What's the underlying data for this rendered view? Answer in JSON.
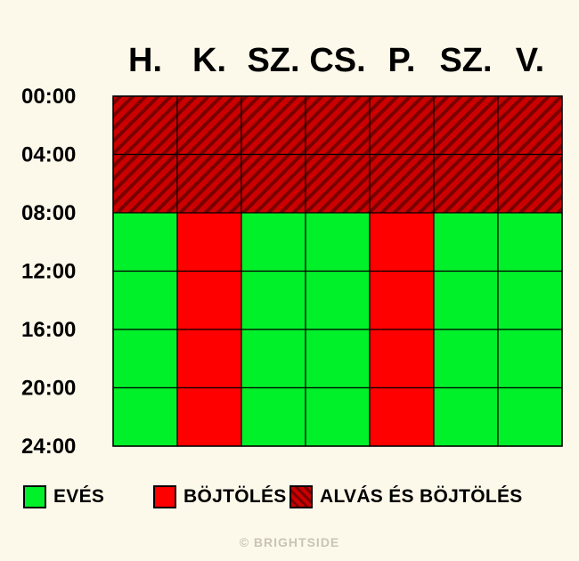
{
  "chart_data": {
    "type": "heatmap",
    "days": [
      "H.",
      "K.",
      "SZ.",
      "CS.",
      "P.",
      "SZ.",
      "V."
    ],
    "time_labels": [
      "00:00",
      "04:00",
      "08:00",
      "12:00",
      "16:00",
      "20:00",
      "24:00"
    ],
    "categories": {
      "eating": {
        "label": "EVÉS",
        "color": "#00f02a",
        "pattern": "solid"
      },
      "fasting": {
        "label": "BÖJTÖLÉS",
        "color": "#ff0000",
        "pattern": "solid"
      },
      "sleep_fasting": {
        "label": "ALVÁS ÉS BÖJTÖLÉS",
        "color": "#cc0000",
        "stripe_color": "#7a0000",
        "pattern": "diagonal-stripes"
      }
    },
    "schedule": [
      [
        "sleep_fasting",
        "sleep_fasting",
        "eating",
        "eating",
        "eating",
        "eating"
      ],
      [
        "sleep_fasting",
        "sleep_fasting",
        "fasting",
        "fasting",
        "fasting",
        "fasting"
      ],
      [
        "sleep_fasting",
        "sleep_fasting",
        "eating",
        "eating",
        "eating",
        "eating"
      ],
      [
        "sleep_fasting",
        "sleep_fasting",
        "eating",
        "eating",
        "eating",
        "eating"
      ],
      [
        "sleep_fasting",
        "sleep_fasting",
        "fasting",
        "fasting",
        "fasting",
        "fasting"
      ],
      [
        "sleep_fasting",
        "sleep_fasting",
        "eating",
        "eating",
        "eating",
        "eating"
      ],
      [
        "sleep_fasting",
        "sleep_fasting",
        "eating",
        "eating",
        "eating",
        "eating"
      ]
    ]
  },
  "legend": [
    {
      "key": "eating",
      "label": "EVÉS"
    },
    {
      "key": "fasting",
      "label": "BÖJTÖLÉS"
    },
    {
      "key": "sleep_fasting",
      "label": "ALVÁS ÉS BÖJTÖLÉS"
    }
  ],
  "watermark": "© BRIGHTSIDE"
}
